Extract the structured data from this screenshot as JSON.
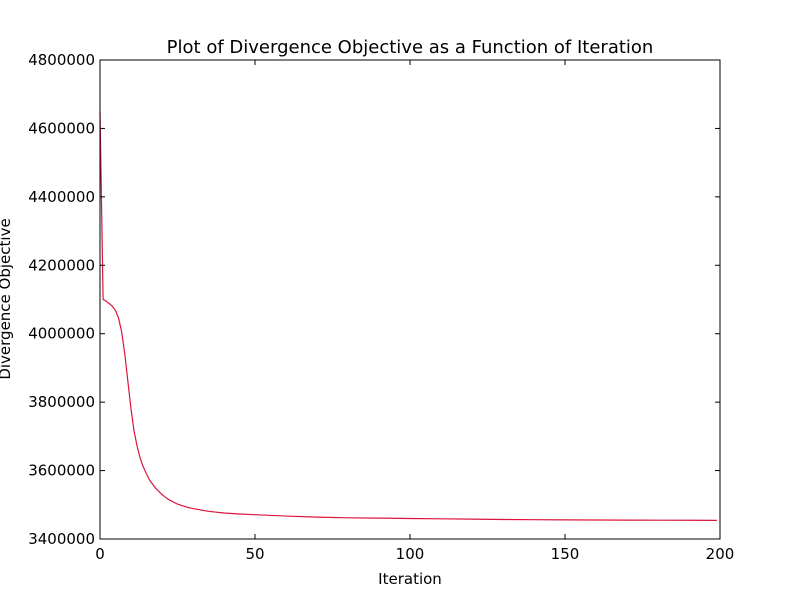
{
  "chart_data": {
    "type": "line",
    "title": "Plot of Divergence Objective as a Function of Iteration",
    "xlabel": "Iteration",
    "ylabel": "Divergence Objective",
    "xlim": [
      0,
      200
    ],
    "ylim": [
      3400000,
      4800000
    ],
    "xticks": [
      0,
      50,
      100,
      150,
      200
    ],
    "yticks": [
      3400000,
      3600000,
      3800000,
      4000000,
      4200000,
      4400000,
      4600000,
      4800000
    ],
    "grid": false,
    "series": [
      {
        "color": "#dc143c",
        "x": [
          0,
          1,
          2,
          3,
          4,
          5,
          6,
          7,
          8,
          9,
          10,
          11,
          12,
          13,
          14,
          15,
          16,
          18,
          20,
          22,
          25,
          28,
          30,
          35,
          40,
          45,
          50,
          60,
          70,
          80,
          90,
          100,
          110,
          120,
          130,
          140,
          150,
          160,
          170,
          180,
          190,
          199
        ],
        "y": [
          4650000,
          4100000,
          4095000,
          4088000,
          4080000,
          4068000,
          4045000,
          4005000,
          3940000,
          3860000,
          3780000,
          3715000,
          3670000,
          3635000,
          3610000,
          3590000,
          3572000,
          3548000,
          3530000,
          3516000,
          3502000,
          3493000,
          3489000,
          3481000,
          3476000,
          3473000,
          3471000,
          3467000,
          3464000,
          3462000,
          3461000,
          3460000,
          3459000,
          3458000,
          3457000,
          3456500,
          3456000,
          3455500,
          3455200,
          3455000,
          3454800,
          3454500
        ]
      }
    ]
  }
}
